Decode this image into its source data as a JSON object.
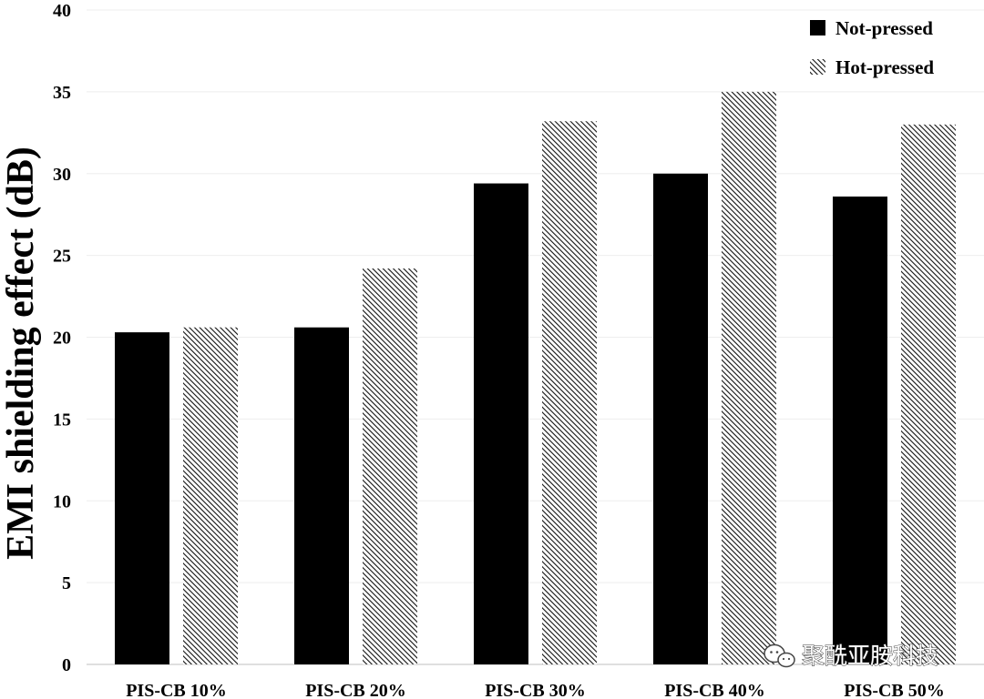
{
  "chart_data": {
    "type": "bar",
    "title": "",
    "xlabel": "",
    "ylabel": "EMI shielding effect (dB)",
    "ylim": [
      0,
      40
    ],
    "yticks": [
      0,
      5,
      10,
      15,
      20,
      25,
      30,
      35,
      40
    ],
    "grid": true,
    "legend_position": "top-right",
    "categories": [
      "PIS-CB 10%",
      "PIS-CB 20%",
      "PIS-CB 30%",
      "PIS-CB 40%",
      "PIS-CB 50%"
    ],
    "series": [
      {
        "name": "Not-pressed",
        "values": [
          20.3,
          20.6,
          29.4,
          30.0,
          28.6
        ],
        "fill": "#000000"
      },
      {
        "name": "Hot-pressed",
        "values": [
          20.6,
          24.2,
          33.2,
          35.0,
          33.0
        ],
        "fill": "hatched"
      }
    ]
  },
  "watermark": {
    "text": "聚酰亚胺科技",
    "icon": "wechat-icon"
  }
}
